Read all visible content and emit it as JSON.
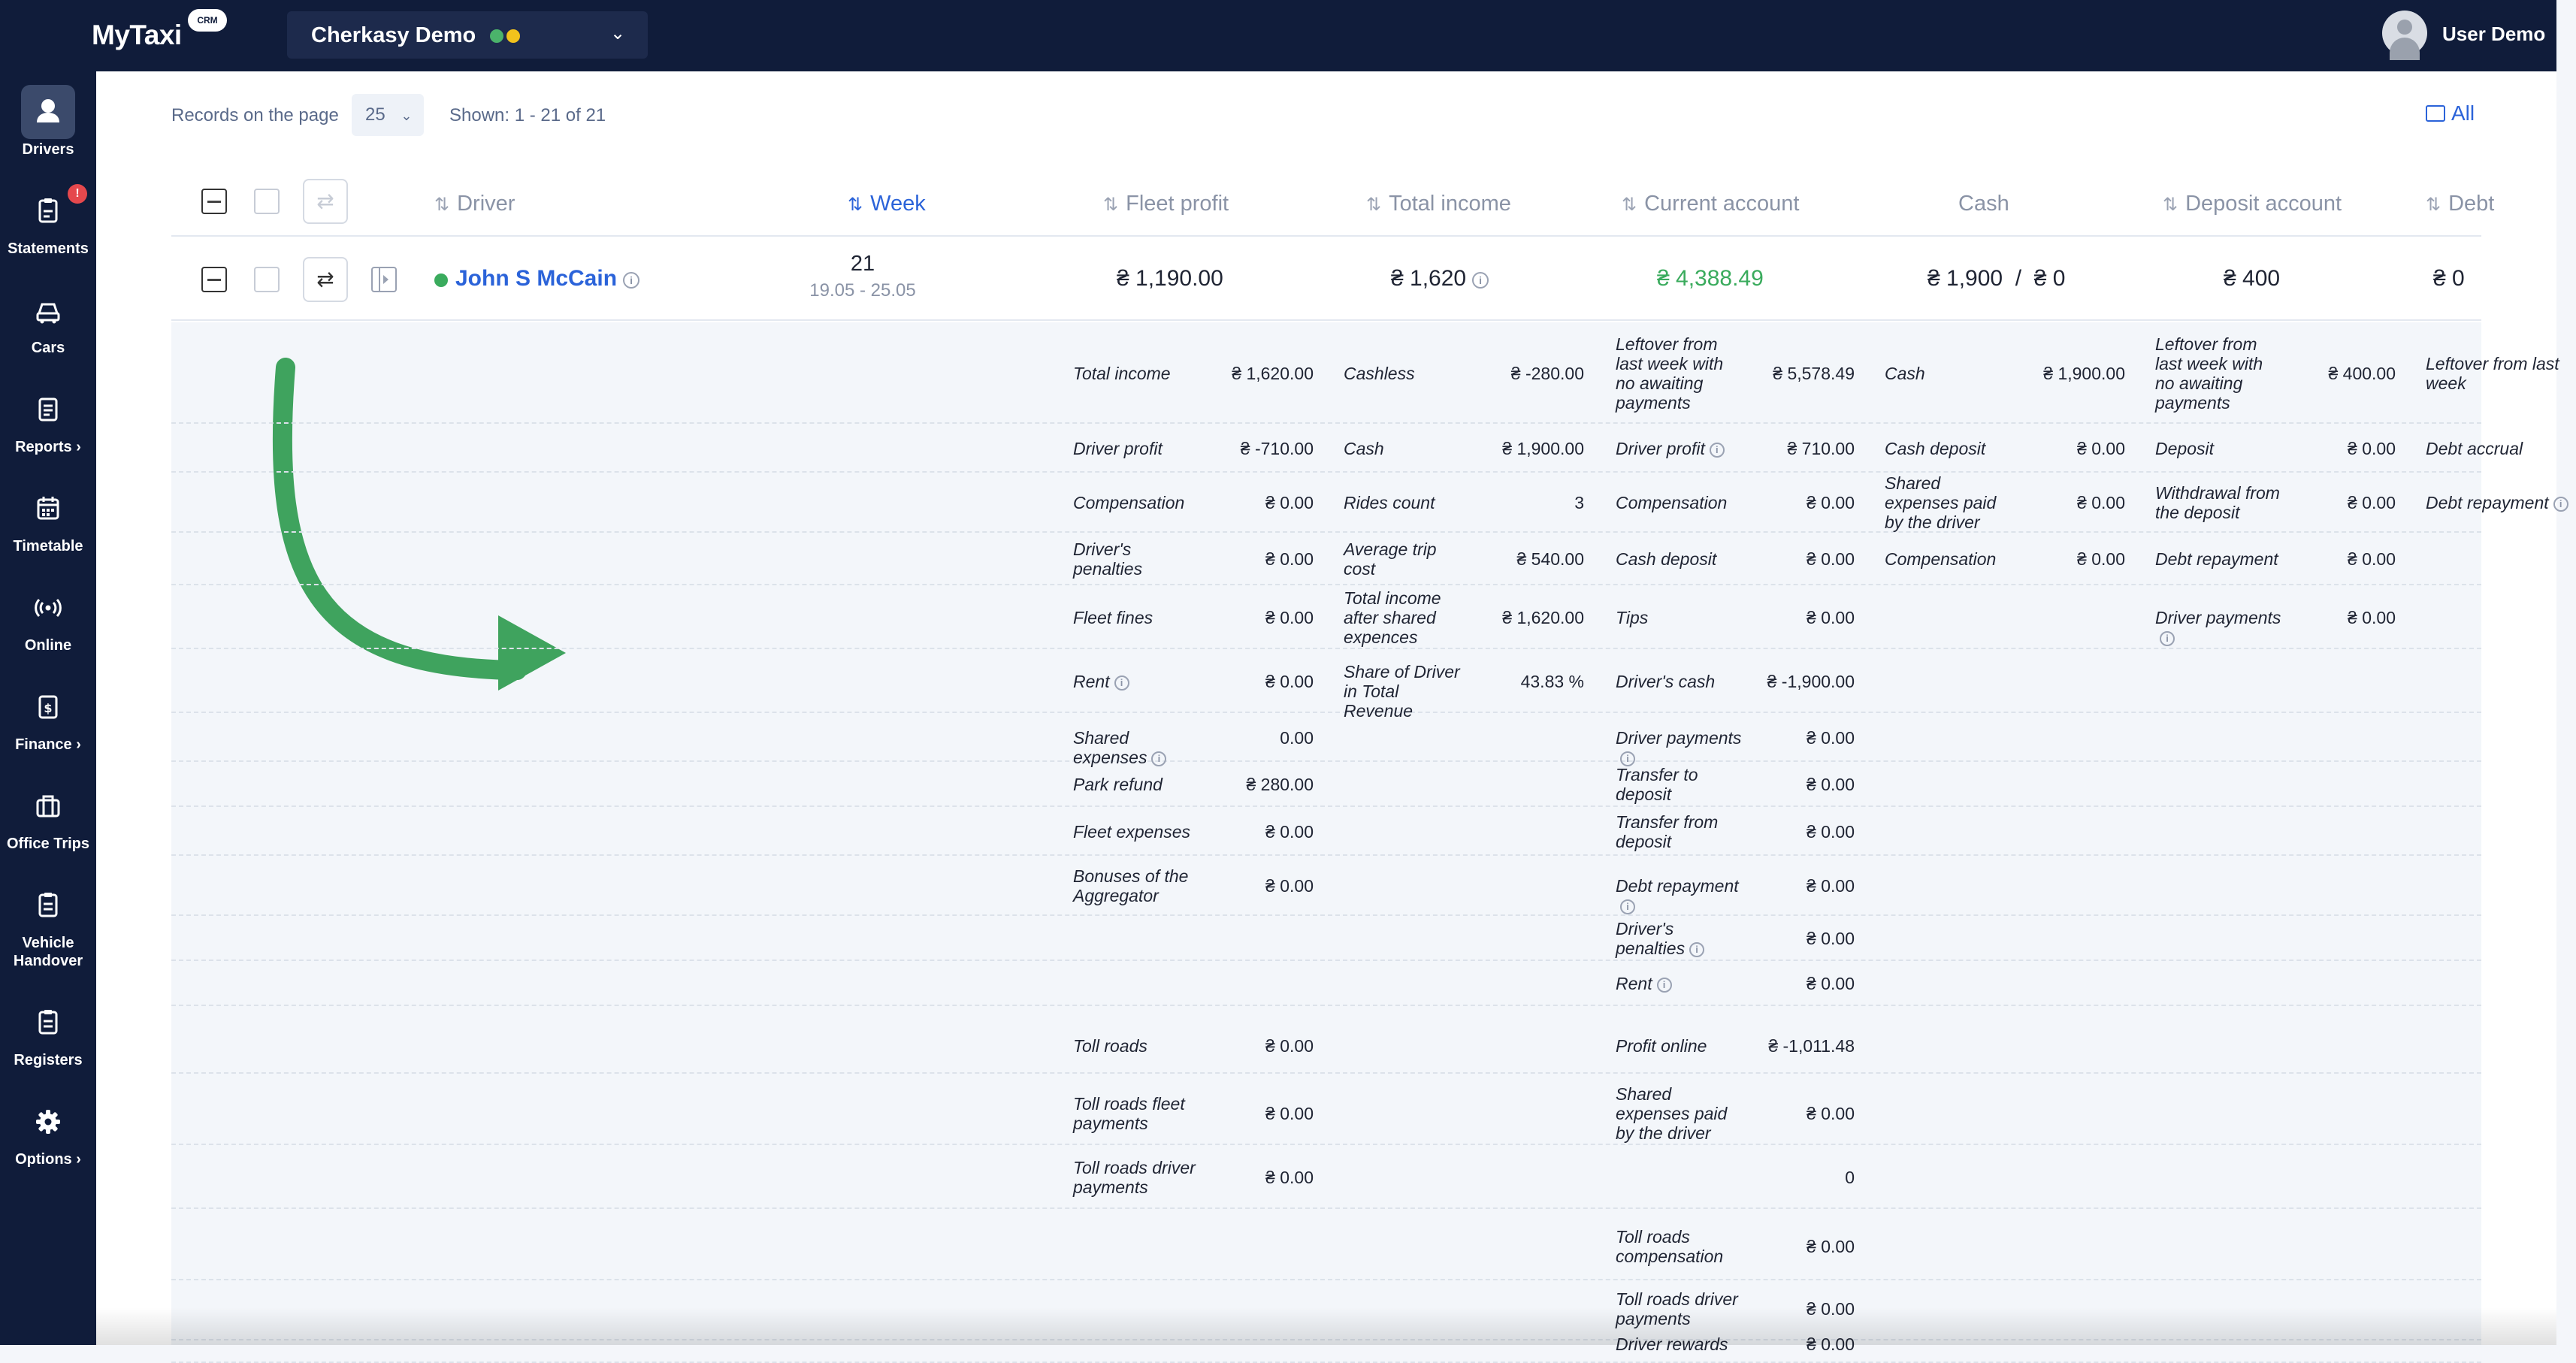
{
  "header": {
    "logo": "MyTaxi",
    "logo_badge": "CRM",
    "company": "Cherkasy Demo",
    "user": "User Demo"
  },
  "sidebar": {
    "items": [
      {
        "label": "Drivers",
        "icon": "person-icon"
      },
      {
        "label": "Statements",
        "icon": "clipboard-icon",
        "badge": "!"
      },
      {
        "label": "Cars",
        "icon": "car-icon"
      },
      {
        "label": "Reports ›",
        "icon": "report-icon"
      },
      {
        "label": "Timetable",
        "icon": "calendar-icon"
      },
      {
        "label": "Online",
        "icon": "broadcast-icon"
      },
      {
        "label": "Finance ›",
        "icon": "finance-icon"
      },
      {
        "label": "Office Trips",
        "icon": "briefcase-icon"
      },
      {
        "label": "Vehicle Handover",
        "icon": "clipboard-icon"
      },
      {
        "label": "Registers",
        "icon": "clipboard-icon"
      },
      {
        "label": "Options ›",
        "icon": "gear-icon"
      }
    ]
  },
  "toolbar": {
    "records_label": "Records on the page",
    "records_value": "25",
    "shown": "Shown: 1 - 21 of 21",
    "all_label": "All"
  },
  "table": {
    "columns": [
      "Driver",
      "Week",
      "Fleet profit",
      "Total income",
      "Current account",
      "Cash",
      "Deposit account",
      "Debt"
    ],
    "row": {
      "driver": "John S McCain",
      "week": "21",
      "week_range": "19.05 - 25.05",
      "fleet_profit": "₴ 1,190.00",
      "total_income": "₴ 1,620",
      "current_account": "₴ 4,388.49",
      "cash": "₴ 1,900  /  ₴ 0",
      "deposit": "₴ 400",
      "debt": "₴ 0"
    }
  },
  "details": {
    "col1": [
      {
        "label": "Total income",
        "value": "₴ 1,620.00"
      },
      {
        "label": "Driver profit",
        "value": "₴ -710.00"
      },
      {
        "label": "Compensation",
        "value": "₴ 0.00"
      },
      {
        "label": "Driver's penalties",
        "value": "₴ 0.00"
      },
      {
        "label": "Fleet fines",
        "value": "₴ 0.00"
      },
      {
        "label": "Rent",
        "value": "₴ 0.00",
        "info": true
      },
      {
        "label": "Shared expenses",
        "value": "0.00",
        "info": true
      },
      {
        "label": "Park refund",
        "value": "₴ 280.00"
      },
      {
        "label": "Fleet expenses",
        "value": "₴ 0.00"
      },
      {
        "label": "Bonuses of the Aggregator",
        "value": "₴ 0.00"
      },
      {
        "label": "Toll roads",
        "value": "₴ 0.00"
      },
      {
        "label": "Toll roads fleet payments",
        "value": "₴ 0.00"
      },
      {
        "label": "Toll roads driver payments",
        "value": "₴ 0.00"
      }
    ],
    "col2": [
      {
        "label": "Cashless",
        "value": "₴ -280.00"
      },
      {
        "label": "Cash",
        "value": "₴ 1,900.00"
      },
      {
        "label": "Rides count",
        "value": "3"
      },
      {
        "label": "Average trip cost",
        "value": "₴ 540.00"
      },
      {
        "label": "Total income after shared expences",
        "value": "₴ 1,620.00"
      },
      {
        "label": "Share of Driver in Total Revenue",
        "value": "43.83 %"
      }
    ],
    "col3": [
      {
        "label": "Leftover from last week with no awaiting payments",
        "value": "₴ 5,578.49"
      },
      {
        "label": "Driver profit",
        "value": "₴ 710.00",
        "info": true
      },
      {
        "label": "Compensation",
        "value": "₴ 0.00"
      },
      {
        "label": "Cash deposit",
        "value": "₴ 0.00"
      },
      {
        "label": "Tips",
        "value": "₴ 0.00"
      },
      {
        "label": "Driver's cash",
        "value": "₴ -1,900.00"
      },
      {
        "label": "Driver payments",
        "value": "₴ 0.00",
        "info": true
      },
      {
        "label": "Transfer to deposit",
        "value": "₴ 0.00"
      },
      {
        "label": "Transfer from deposit",
        "value": "₴ 0.00"
      },
      {
        "label": "Debt repayment",
        "value": "₴ 0.00",
        "info": true
      },
      {
        "label": "Driver's penalties",
        "value": "₴ 0.00",
        "info": true
      },
      {
        "label": "Rent",
        "value": "₴ 0.00",
        "info": true
      },
      {
        "label": "Profit online",
        "value": "₴ -1,011.48"
      },
      {
        "label": "Shared expenses paid by the driver",
        "value": "₴ 0.00"
      },
      {
        "label": "",
        "value": "0"
      },
      {
        "label": "Toll roads compensation",
        "value": "₴ 0.00"
      },
      {
        "label": "Toll roads driver payments",
        "value": "₴ 0.00"
      },
      {
        "label": "Driver rewards",
        "value": "₴ 0.00"
      }
    ],
    "col4": [
      {
        "label": "Cash",
        "value": "₴ 1,900.00"
      },
      {
        "label": "Cash deposit",
        "value": "₴ 0.00"
      },
      {
        "label": "Shared expenses paid by the driver",
        "value": "₴ 0.00"
      },
      {
        "label": "Compensation",
        "value": "₴ 0.00"
      }
    ],
    "col5": [
      {
        "label": "Leftover from last week with no awaiting payments",
        "value": "₴ 400.00"
      },
      {
        "label": "Deposit",
        "value": "₴ 0.00"
      },
      {
        "label": "Withdrawal from the deposit",
        "value": "₴ 0.00"
      },
      {
        "label": "Debt repayment",
        "value": "₴ 0.00"
      },
      {
        "label": "Driver payments",
        "value": "₴ 0.00",
        "info": true
      }
    ],
    "col6": [
      {
        "label": "Leftover from last week"
      },
      {
        "label": "Debt accrual"
      },
      {
        "label": "Debt repayment",
        "info": true
      }
    ]
  },
  "colors": {
    "navy": "#101c3a",
    "accent": "#2b63d9",
    "green": "#3aab5d",
    "arrow": "#3fa35e"
  }
}
